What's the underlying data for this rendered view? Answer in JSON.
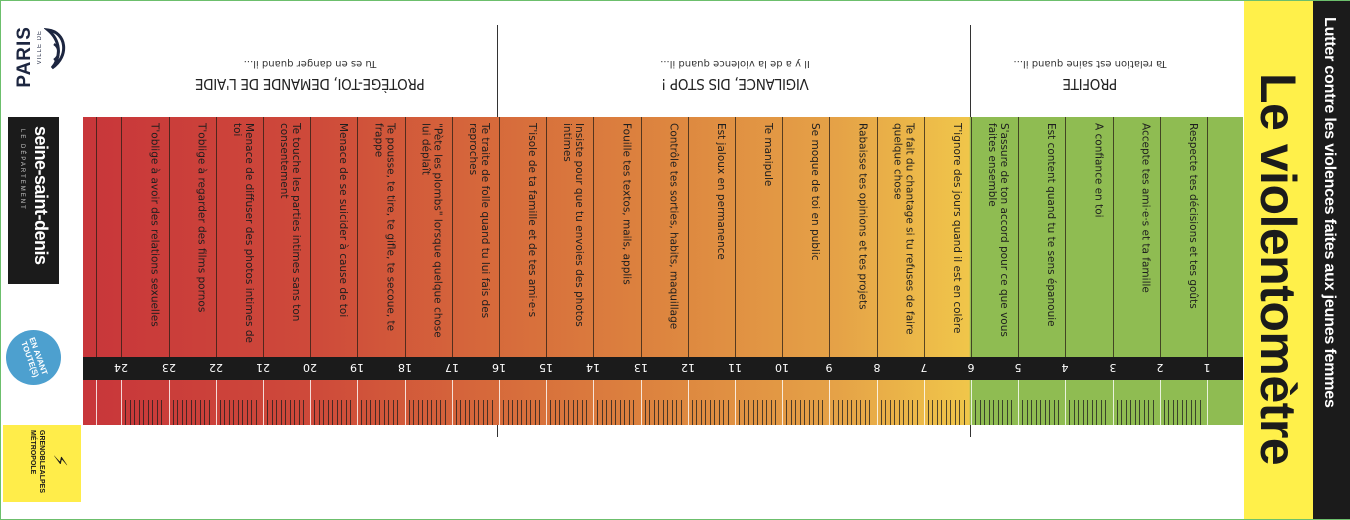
{
  "logos": {
    "paris": {
      "ville": "VILLE DE",
      "name": "PARIS"
    },
    "seine_saint_denis": {
      "name": "seine-saint-denis",
      "sub": "LE DÉPARTEMENT"
    },
    "en_avant": "EN AVANT TOUTE(S)",
    "grenoble": "GRENOBLEALPES MÉTROPOLE"
  },
  "title": "Le violentomètre",
  "subtitle": "Lutter contre les violences faites aux jeunes femmes",
  "sections": [
    {
      "title": "PROTÈGE-TOI, DEMANDE DE L'AIDE",
      "subtitle": "Tu es en danger quand il..."
    },
    {
      "title": "VIGILANCE, DIS STOP !",
      "subtitle": "Il y a de la violence quand il..."
    },
    {
      "title": "PROFITE",
      "subtitle": "Ta relation est saine quand il..."
    }
  ],
  "criteria": [
    "Respecte tes décisions et tes goûts",
    "Accepte tes ami·e·s et ta famille",
    "A confiance en toi",
    "Est content quand tu te sens épanouie",
    "S'assure de ton accord pour ce que vous faites ensemble",
    "T'ignore des jours quand il est en colère",
    "Te fait du chantage si tu refuses de faire quelque chose",
    "Rabaisse tes opinions et tes projets",
    "Se moque de toi en public",
    "Te manipule",
    "Est jaloux en permanence",
    "Contrôle tes sorties, habits, maquillage",
    "Fouille tes textos, mails, applis",
    "Insiste pour que tu envoies des photos intimes",
    "T'isole de ta famille et de tes ami·e·s",
    "Te traite de folle quand tu lui fais des reproches",
    "\"Pète les plombs\" lorsque quelque chose lui déplaît",
    "Te pousse, te tire, te gifle, te secoue, te frappe",
    "Menace de se suicider à cause de toi",
    "Te touche les parties intimes sans ton consentement",
    "Menace de diffuser des photos intimes de toi",
    "T'oblige à regarder des films pornos",
    "T'oblige à avoir des relations sexuelles"
  ],
  "scale": [
    "1",
    "2",
    "3",
    "4",
    "5",
    "6",
    "7",
    "8",
    "9",
    "10",
    "11",
    "12",
    "13",
    "14",
    "15",
    "16",
    "17",
    "18",
    "19",
    "20",
    "21",
    "22",
    "23",
    "24"
  ],
  "colors": {
    "danger": "#c8363a",
    "vigilance": "#e5a247",
    "healthy": "#8fbc52",
    "title_bg": "#fff04a"
  }
}
